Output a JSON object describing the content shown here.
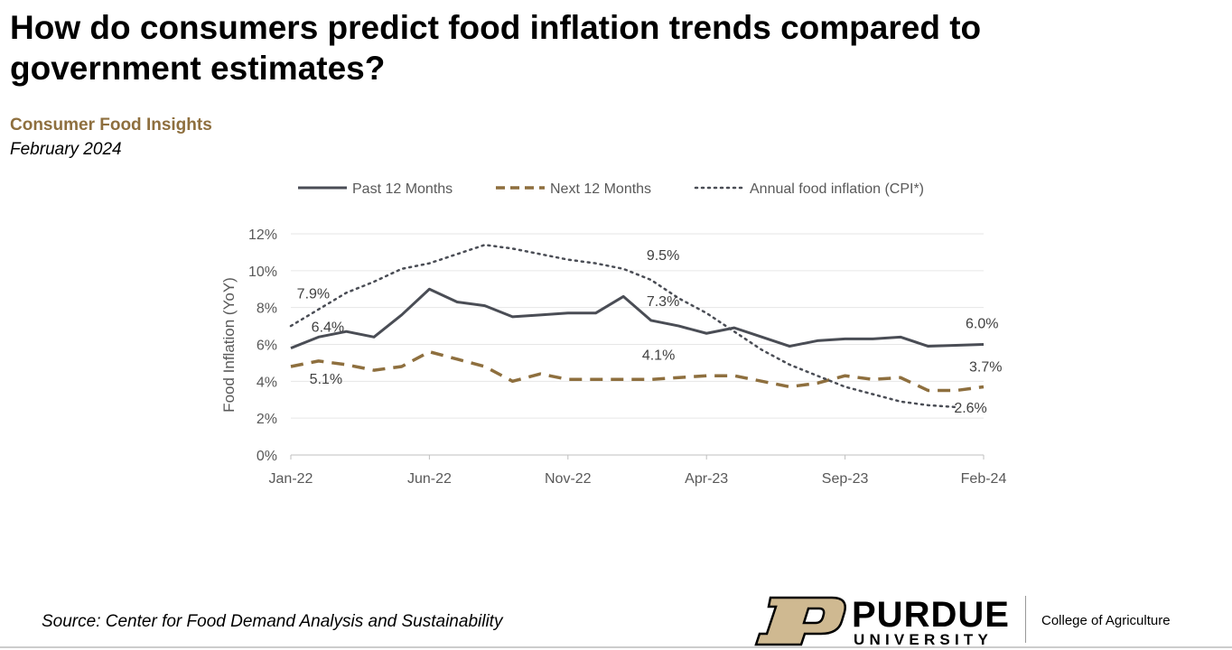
{
  "title": "How do consumers predict food inflation trends compared to government estimates?",
  "subtitle": "Consumer Food Insights",
  "date": "February 2024",
  "source": "Source:  Center for Food Demand Analysis and Sustainability",
  "logo": {
    "name": "PURDUE",
    "sub": "UNIVERSITY",
    "college": "College of Agriculture"
  },
  "colors": {
    "accent": "#8e6f3e",
    "past": "#4a4d55",
    "cpi": "#4a4d55",
    "grid": "#e6e6e6"
  },
  "chart_data": {
    "type": "line",
    "ylabel": "Food Inflation (YoY)",
    "ylim": [
      0,
      12
    ],
    "yticks": [
      "0%",
      "2%",
      "4%",
      "6%",
      "8%",
      "10%",
      "12%"
    ],
    "xtick_labels": [
      "Jan-22",
      "Jun-22",
      "Nov-22",
      "Apr-23",
      "Sep-23",
      "Feb-24"
    ],
    "x": [
      "Jan-22",
      "Feb-22",
      "Mar-22",
      "Apr-22",
      "May-22",
      "Jun-22",
      "Jul-22",
      "Aug-22",
      "Sep-22",
      "Oct-22",
      "Nov-22",
      "Dec-22",
      "Jan-23",
      "Feb-23",
      "Mar-23",
      "Apr-23",
      "May-23",
      "Jun-23",
      "Jul-23",
      "Aug-23",
      "Sep-23",
      "Oct-23",
      "Nov-23",
      "Dec-23",
      "Jan-24",
      "Feb-24"
    ],
    "legend_position": "top",
    "grid": true,
    "series": [
      {
        "name": "Past 12 Months",
        "style": "solid",
        "color": "#4a4d55",
        "values": [
          5.8,
          6.4,
          6.7,
          6.4,
          7.6,
          9.0,
          8.3,
          8.1,
          7.5,
          7.6,
          7.7,
          7.7,
          8.6,
          7.3,
          7.0,
          6.6,
          6.9,
          6.4,
          5.9,
          6.2,
          6.3,
          6.3,
          6.4,
          5.9,
          5.95,
          6.0
        ]
      },
      {
        "name": "Next 12 Months",
        "style": "dashed",
        "color": "#8e6f3e",
        "values": [
          4.8,
          5.1,
          4.9,
          4.6,
          4.8,
          5.6,
          5.2,
          4.8,
          4.0,
          4.4,
          4.1,
          4.1,
          4.1,
          4.1,
          4.2,
          4.3,
          4.3,
          4.0,
          3.7,
          3.9,
          4.3,
          4.1,
          4.2,
          3.5,
          3.5,
          3.7
        ]
      },
      {
        "name": "Annual food inflation (CPI*)",
        "style": "dotted",
        "color": "#4a4d55",
        "values": [
          7.0,
          7.9,
          8.8,
          9.4,
          10.1,
          10.4,
          10.9,
          11.4,
          11.2,
          10.9,
          10.6,
          10.4,
          10.1,
          9.5,
          8.5,
          7.7,
          6.7,
          5.7,
          4.9,
          4.3,
          3.7,
          3.3,
          2.9,
          2.7,
          2.6,
          null
        ]
      }
    ],
    "annotations": [
      {
        "text": "7.9%",
        "series": 2,
        "x": "Feb-22"
      },
      {
        "text": "6.4%",
        "series": 0,
        "x": "Feb-22"
      },
      {
        "text": "5.1%",
        "series": 1,
        "x": "Feb-22"
      },
      {
        "text": "9.5%",
        "series": 2,
        "x": "Feb-23"
      },
      {
        "text": "7.3%",
        "series": 0,
        "x": "Feb-23"
      },
      {
        "text": "4.1%",
        "series": 1,
        "x": "Feb-23"
      },
      {
        "text": "6.0%",
        "series": 0,
        "x": "Feb-24"
      },
      {
        "text": "3.7%",
        "series": 1,
        "x": "Feb-24"
      },
      {
        "text": "2.6%",
        "series": 2,
        "x": "Jan-24"
      }
    ]
  }
}
